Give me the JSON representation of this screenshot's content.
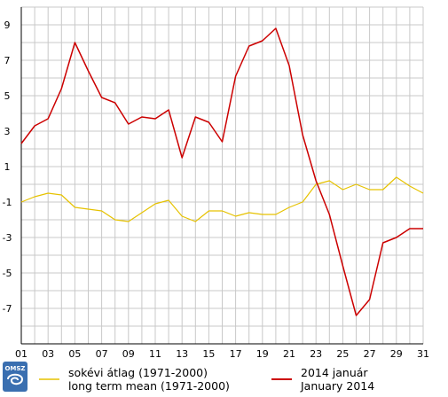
{
  "chart_data": {
    "type": "line",
    "title": "",
    "xlabel": "",
    "ylabel": "",
    "xlim": [
      1,
      31
    ],
    "ylim": [
      -9,
      10
    ],
    "grid": true,
    "legend_position": "bottom",
    "x_tick_labels": [
      "01",
      "03",
      "05",
      "07",
      "09",
      "11",
      "13",
      "15",
      "17",
      "19",
      "21",
      "23",
      "25",
      "27",
      "29",
      "31"
    ],
    "y_tick_labels": [
      "9",
      "7",
      "5",
      "3",
      "1",
      "-1",
      "-3",
      "-5",
      "-7"
    ],
    "x": [
      1,
      2,
      3,
      4,
      5,
      6,
      7,
      8,
      9,
      10,
      11,
      12,
      13,
      14,
      15,
      16,
      17,
      18,
      19,
      20,
      21,
      22,
      23,
      24,
      25,
      26,
      27,
      28,
      29,
      30,
      31
    ],
    "series": [
      {
        "name_lines": [
          "sokévi átlag (1971-2000)",
          "long term mean (1971-2000)"
        ],
        "color": "#e6c200",
        "values": [
          -1.0,
          -0.7,
          -0.5,
          -0.6,
          -1.3,
          -1.4,
          -1.5,
          -2.0,
          -2.1,
          -1.6,
          -1.1,
          -0.9,
          -1.8,
          -2.1,
          -1.5,
          -1.5,
          -1.8,
          -1.6,
          -1.7,
          -1.7,
          -1.3,
          -1.0,
          0.0,
          0.2,
          -0.3,
          0.0,
          -0.3,
          -0.3,
          0.4,
          -0.1,
          -0.5
        ]
      },
      {
        "name_lines": [
          "2014 január",
          "January 2014"
        ],
        "color": "#cc0000",
        "values": [
          2.3,
          3.3,
          3.7,
          5.4,
          8.0,
          6.4,
          4.9,
          4.6,
          3.4,
          3.8,
          3.7,
          4.2,
          1.5,
          3.8,
          3.5,
          2.4,
          6.1,
          7.8,
          8.1,
          8.8,
          6.7,
          2.8,
          0.2,
          -1.7,
          -4.6,
          -7.4,
          -6.5,
          -3.3,
          -3.0,
          -2.5,
          -2.5
        ]
      }
    ]
  },
  "logo": {
    "text": "OMSZ",
    "color": "#3a6fb0"
  }
}
